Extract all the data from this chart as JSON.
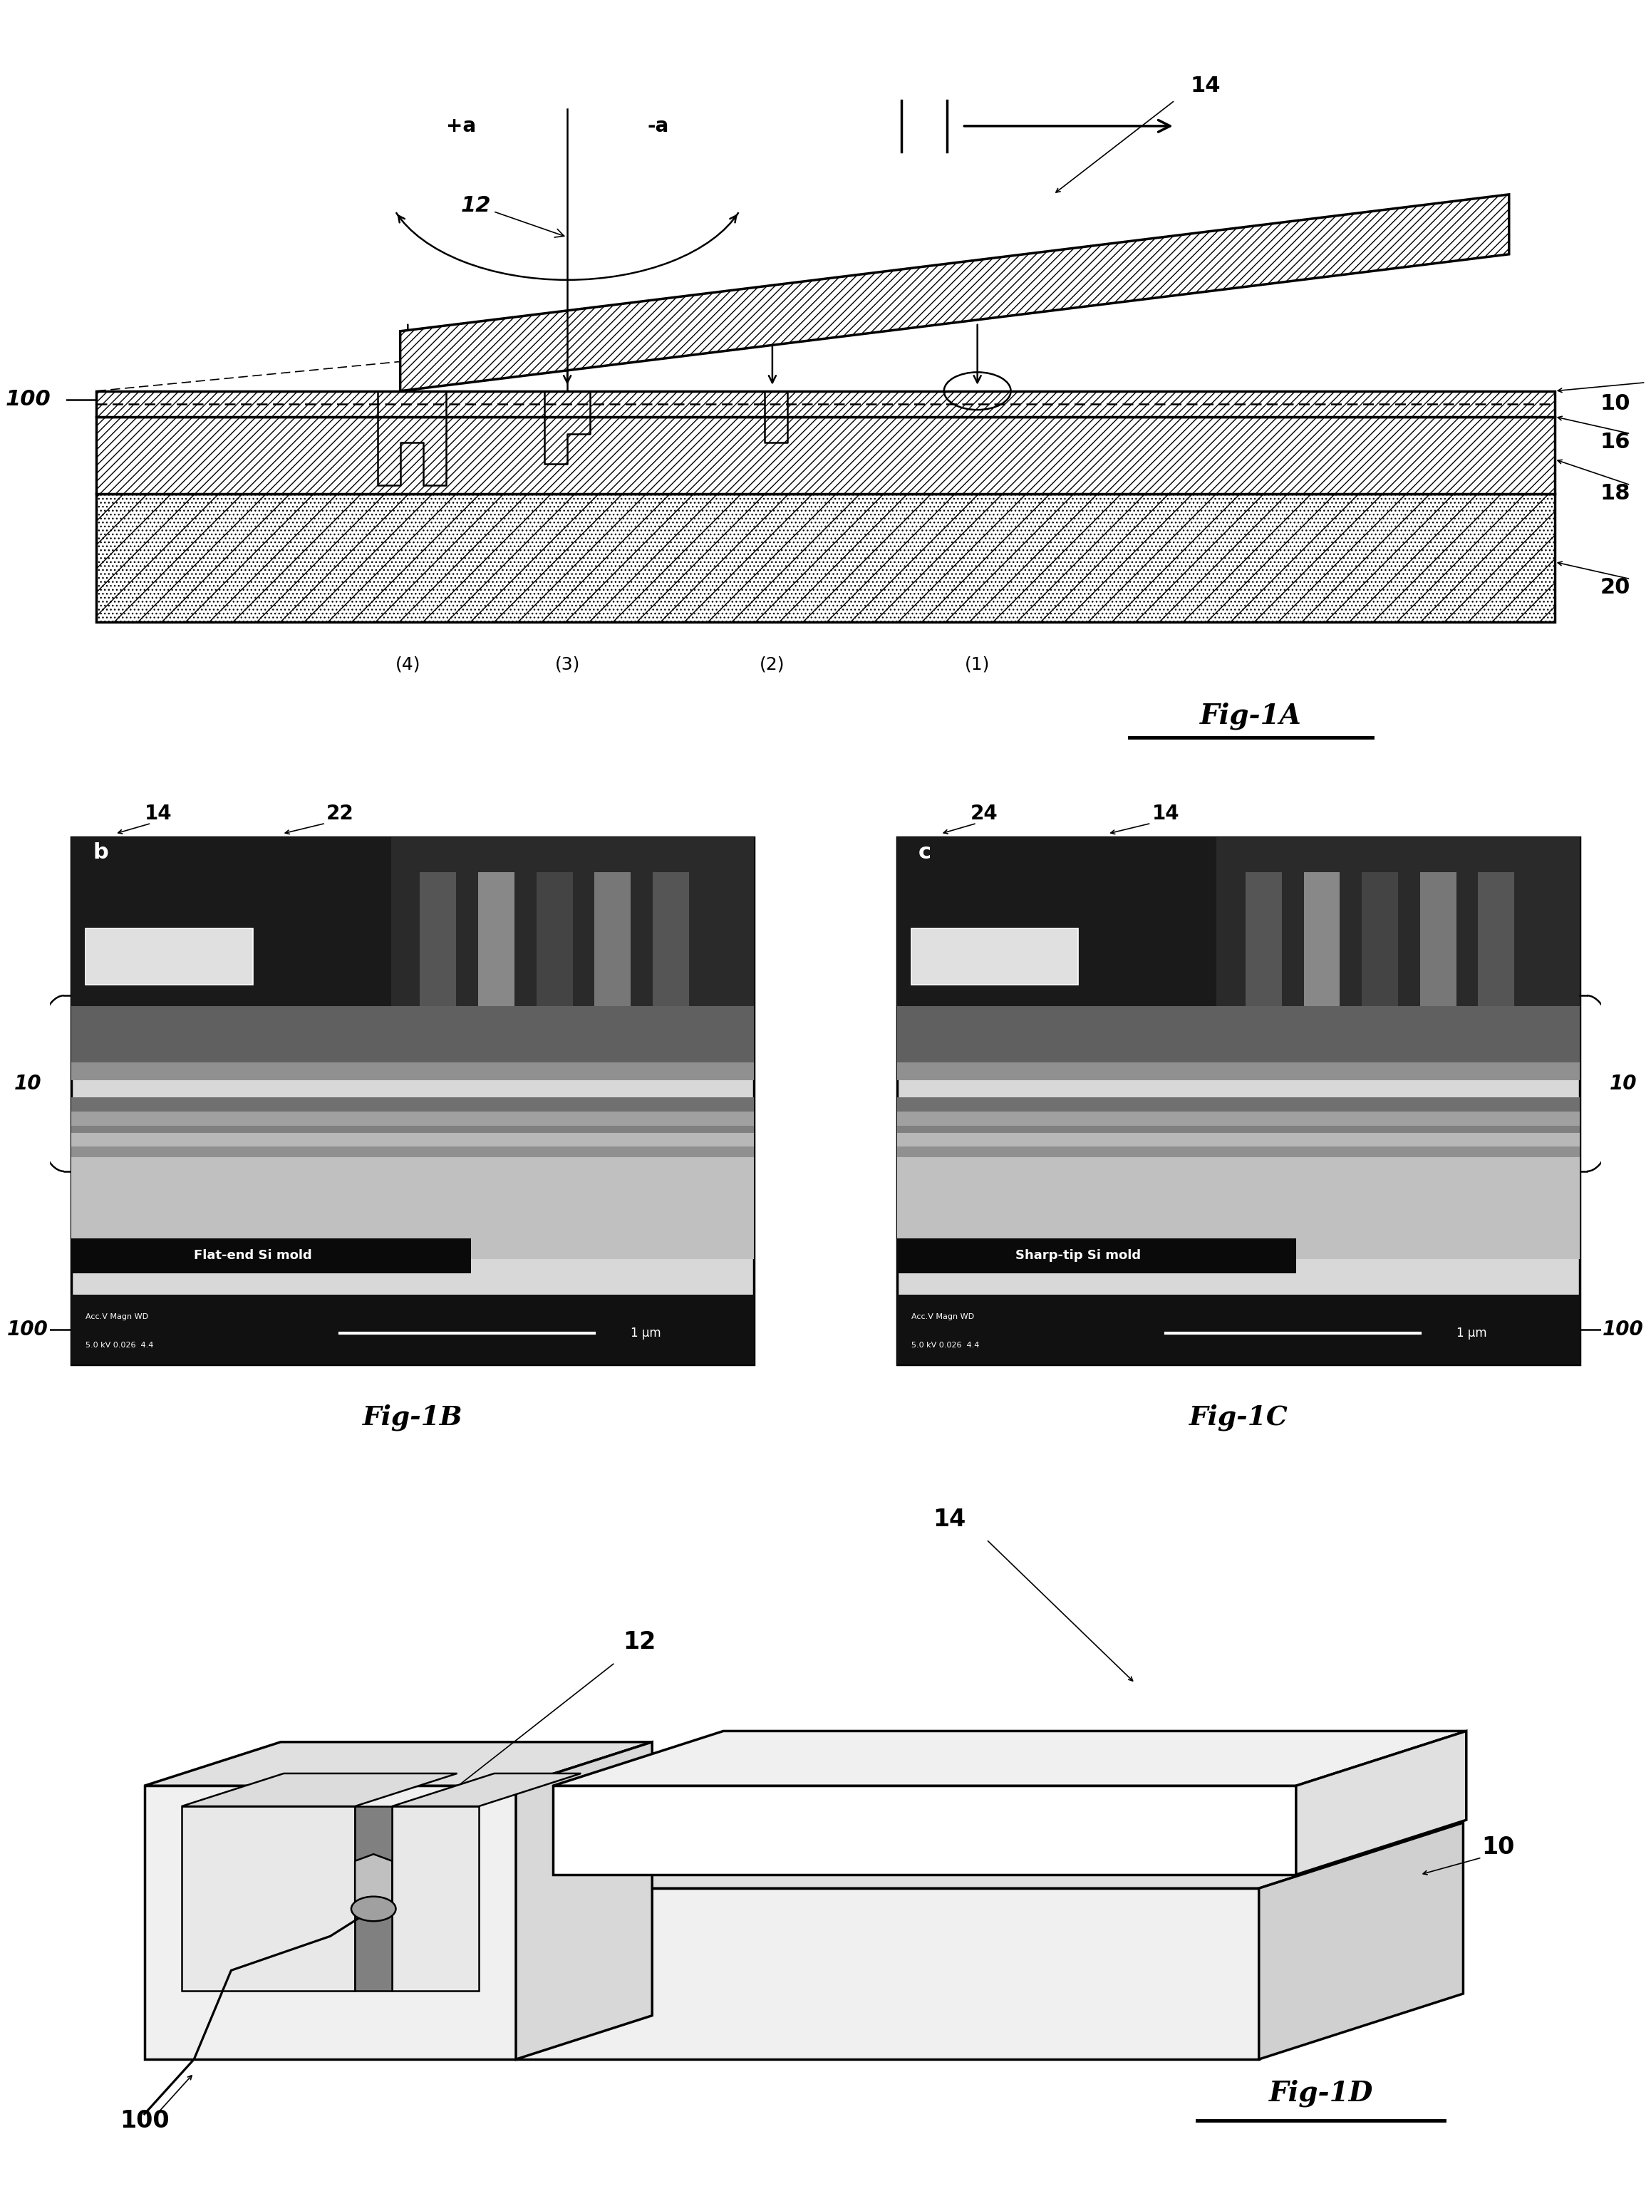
{
  "fig_width": 23.17,
  "fig_height": 30.96,
  "bg_color": "#ffffff",
  "labels": {
    "fig1A": "Fig-1A",
    "fig1B": "Fig-1B",
    "fig1C": "Fig-1C",
    "fig1D": "Fig-1D",
    "label_14": "14",
    "label_10": "10",
    "label_12": "12",
    "label_16": "16",
    "label_18": "18",
    "label_20": "20",
    "label_100": "100",
    "label_22": "22",
    "label_24": "24",
    "label_plus_a": "+a",
    "label_minus_a": "-a",
    "label_1": "(1)",
    "label_2": "(2)",
    "label_3": "(3)",
    "label_4": "(4)",
    "flat_end": "Flat-end Si mold",
    "sharp_tip": "Sharp-tip Si mold"
  }
}
